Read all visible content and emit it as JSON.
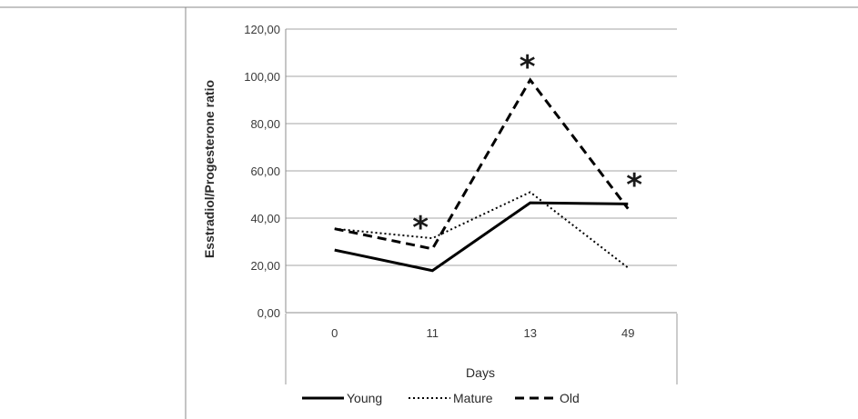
{
  "chart_data": {
    "type": "line",
    "title": "",
    "xlabel": "Days",
    "ylabel": "Esstradiol/Progesterone ratio",
    "categories": [
      "0",
      "11",
      "13",
      "49"
    ],
    "ylim": [
      0,
      120
    ],
    "ytick_labels": [
      "0,00",
      "20,00",
      "40,00",
      "60,00",
      "80,00",
      "100,00",
      "120,00"
    ],
    "grid": true,
    "legend_position": "bottom",
    "series": [
      {
        "name": "Young",
        "values": [
          26.5,
          17.8,
          46.5,
          46.0
        ],
        "style": "solid",
        "color": "#000000"
      },
      {
        "name": "Mature",
        "values": [
          35.5,
          31.5,
          51.0,
          19.0
        ],
        "style": "dotted",
        "color": "#000000"
      },
      {
        "name": "Old",
        "values": [
          35.5,
          27.0,
          98.5,
          44.0
        ],
        "style": "dashed",
        "color": "#000000"
      }
    ],
    "annotations": [
      {
        "text": "*",
        "category": "11",
        "y": 40
      },
      {
        "text": "*",
        "category": "13",
        "y": 108
      },
      {
        "text": "*",
        "category": "49",
        "y": 58
      }
    ]
  }
}
